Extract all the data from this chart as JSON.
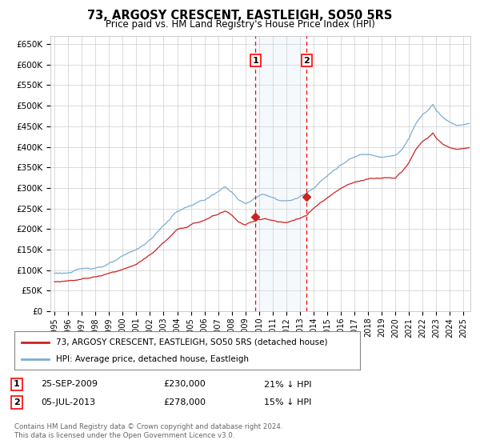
{
  "title": "73, ARGOSY CRESCENT, EASTLEIGH, SO50 5RS",
  "subtitle": "Price paid vs. HM Land Registry's House Price Index (HPI)",
  "hpi_color": "#7aaed6",
  "price_color": "#cc2222",
  "ylim": [
    0,
    670000
  ],
  "yticks": [
    0,
    50000,
    100000,
    150000,
    200000,
    250000,
    300000,
    350000,
    400000,
    450000,
    500000,
    550000,
    600000,
    650000
  ],
  "sale1_date": "25-SEP-2009",
  "sale1_price": 230000,
  "sale1_label": "21% ↓ HPI",
  "sale2_date": "05-JUL-2013",
  "sale2_price": 278000,
  "sale2_label": "15% ↓ HPI",
  "legend_line1": "73, ARGOSY CRESCENT, EASTLEIGH, SO50 5RS (detached house)",
  "legend_line2": "HPI: Average price, detached house, Eastleigh",
  "footnote": "Contains HM Land Registry data © Crown copyright and database right 2024.\nThis data is licensed under the Open Government Licence v3.0.",
  "sale1_x": 2009.73,
  "sale2_x": 2013.5,
  "xlim_left": 1994.7,
  "xlim_right": 2025.5
}
